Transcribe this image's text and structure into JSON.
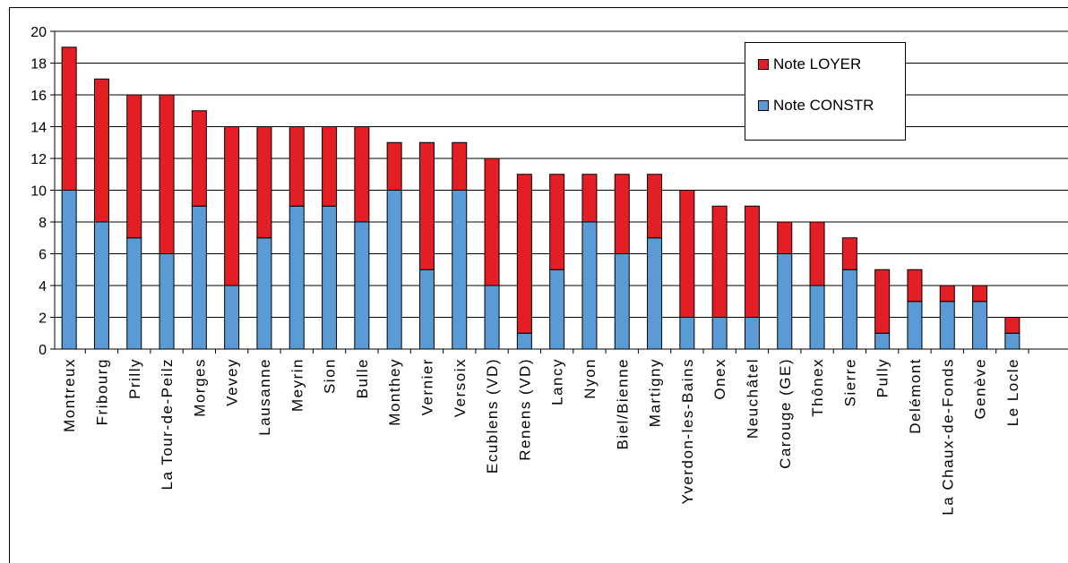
{
  "chart_data": {
    "type": "bar",
    "stacked": true,
    "categories": [
      "Montreux",
      "Fribourg",
      "Prilly",
      "La Tour-de-Peilz",
      "Morges",
      "Vevey",
      "Lausanne",
      "Meyrin",
      "Sion",
      "Bulle",
      "Monthey",
      "Vernier",
      "Versoix",
      "Ecublens (VD)",
      "Renens (VD)",
      "Lancy",
      "Nyon",
      "Biel/Bienne",
      "Martigny",
      "Yverdon-les-Bains",
      "Onex",
      "Neuchâtel",
      "Carouge (GE)",
      "Thônex",
      "Sierre",
      "Pully",
      "Delémont",
      "La Chaux-de-Fonds",
      "Genève",
      "Le Locle"
    ],
    "series": [
      {
        "name": "Note CONSTR",
        "color": "#5b9bd5",
        "values": [
          10,
          8,
          7,
          6,
          9,
          4,
          7,
          9,
          9,
          8,
          10,
          5,
          10,
          4,
          1,
          5,
          8,
          6,
          7,
          2,
          2,
          2,
          6,
          4,
          5,
          1,
          3,
          3,
          3,
          1
        ]
      },
      {
        "name": "Note LOYER",
        "color": "#e31e24",
        "values": [
          9,
          9,
          9,
          10,
          6,
          10,
          7,
          5,
          5,
          6,
          3,
          8,
          3,
          8,
          10,
          6,
          3,
          5,
          4,
          8,
          7,
          7,
          2,
          4,
          2,
          4,
          2,
          1,
          1,
          1
        ]
      }
    ],
    "ylim": [
      0,
      20
    ],
    "yticks": [
      0,
      2,
      4,
      6,
      8,
      10,
      12,
      14,
      16,
      18,
      20
    ],
    "grid": true,
    "legend_position": "top-right"
  }
}
